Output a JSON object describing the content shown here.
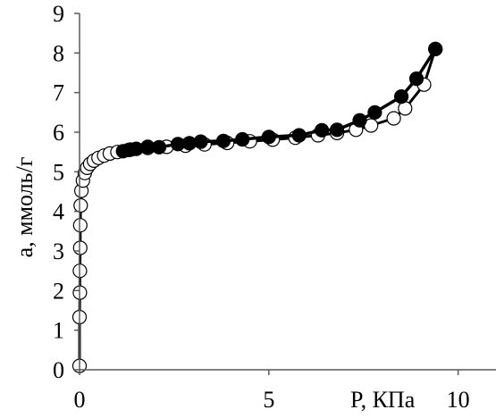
{
  "chart_data": {
    "type": "scatter",
    "title": "",
    "xlabel": "P, КПа",
    "ylabel": "a, ммоль/г",
    "xlim": [
      0,
      11
    ],
    "ylim": [
      0,
      9
    ],
    "x_ticks": [
      0,
      5,
      10
    ],
    "y_ticks": [
      0,
      1,
      2,
      3,
      4,
      5,
      6,
      7,
      8,
      9
    ],
    "grid": false,
    "legend": "none",
    "colors": {
      "axis": "#595959",
      "line": "#000000",
      "open_marker_fill": "#ffffff",
      "filled_marker_fill": "#000000"
    },
    "series": [
      {
        "marker": "open-circle",
        "points": [
          {
            "x": 0.0,
            "y": 0.1
          },
          {
            "x": 0.0,
            "y": 1.33
          },
          {
            "x": 0.01,
            "y": 1.95
          },
          {
            "x": 0.01,
            "y": 2.5
          },
          {
            "x": 0.02,
            "y": 3.08
          },
          {
            "x": 0.02,
            "y": 3.65
          },
          {
            "x": 0.03,
            "y": 4.15
          },
          {
            "x": 0.05,
            "y": 4.52
          },
          {
            "x": 0.09,
            "y": 4.78
          },
          {
            "x": 0.14,
            "y": 4.97
          },
          {
            "x": 0.2,
            "y": 5.1
          },
          {
            "x": 0.28,
            "y": 5.2
          },
          {
            "x": 0.38,
            "y": 5.28
          },
          {
            "x": 0.5,
            "y": 5.35
          },
          {
            "x": 0.65,
            "y": 5.41
          },
          {
            "x": 0.8,
            "y": 5.46
          },
          {
            "x": 1.0,
            "y": 5.5
          },
          {
            "x": 1.3,
            "y": 5.55
          },
          {
            "x": 1.8,
            "y": 5.6
          },
          {
            "x": 2.3,
            "y": 5.63
          },
          {
            "x": 2.8,
            "y": 5.66
          },
          {
            "x": 3.3,
            "y": 5.69
          },
          {
            "x": 3.9,
            "y": 5.73
          },
          {
            "x": 4.5,
            "y": 5.77
          },
          {
            "x": 5.1,
            "y": 5.81
          },
          {
            "x": 5.7,
            "y": 5.86
          },
          {
            "x": 6.3,
            "y": 5.92
          },
          {
            "x": 6.8,
            "y": 5.98
          },
          {
            "x": 7.3,
            "y": 6.06
          },
          {
            "x": 7.7,
            "y": 6.17
          },
          {
            "x": 8.3,
            "y": 6.35
          },
          {
            "x": 8.6,
            "y": 6.6
          },
          {
            "x": 9.1,
            "y": 7.2
          },
          {
            "x": 9.4,
            "y": 8.1
          }
        ]
      },
      {
        "marker": "filled-circle",
        "points": [
          {
            "x": 1.15,
            "y": 5.52
          },
          {
            "x": 1.35,
            "y": 5.56
          },
          {
            "x": 1.5,
            "y": 5.58
          },
          {
            "x": 1.8,
            "y": 5.63
          },
          {
            "x": 2.1,
            "y": 5.62
          },
          {
            "x": 2.6,
            "y": 5.7
          },
          {
            "x": 2.9,
            "y": 5.72
          },
          {
            "x": 3.2,
            "y": 5.76
          },
          {
            "x": 3.8,
            "y": 5.78
          },
          {
            "x": 4.3,
            "y": 5.82
          },
          {
            "x": 5.0,
            "y": 5.88
          },
          {
            "x": 5.8,
            "y": 5.92
          },
          {
            "x": 6.4,
            "y": 6.05
          },
          {
            "x": 6.8,
            "y": 6.06
          },
          {
            "x": 7.4,
            "y": 6.3
          },
          {
            "x": 7.8,
            "y": 6.5
          },
          {
            "x": 8.5,
            "y": 6.9
          },
          {
            "x": 8.9,
            "y": 7.35
          },
          {
            "x": 9.4,
            "y": 8.1
          }
        ]
      }
    ]
  }
}
